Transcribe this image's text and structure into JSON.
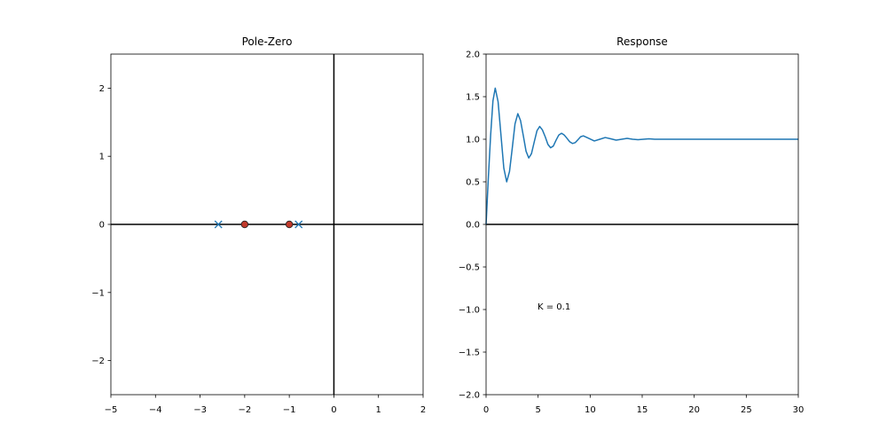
{
  "chart_data": [
    {
      "type": "scatter",
      "title": "Pole-Zero",
      "xlim": [
        -5,
        2
      ],
      "ylim": [
        -2.5,
        2.5
      ],
      "xticks": [
        {
          "value": -5,
          "label": "−5"
        },
        {
          "value": -4,
          "label": "−4"
        },
        {
          "value": -3,
          "label": "−3"
        },
        {
          "value": -2,
          "label": "−2"
        },
        {
          "value": -1,
          "label": "−1"
        },
        0,
        1,
        2
      ],
      "yticks": [
        {
          "value": -2,
          "label": "−2"
        },
        {
          "value": -1,
          "label": "−1"
        },
        0,
        1,
        2
      ],
      "hline": 0,
      "vline": 0,
      "series": [
        {
          "marker": "x",
          "color": "#1f77b4",
          "x": [
            -2.59,
            -0.79
          ],
          "values": [
            0,
            0
          ]
        },
        {
          "marker": "o",
          "color": "#c0392b",
          "x": [
            -2,
            -1
          ],
          "values": [
            0,
            0
          ]
        }
      ]
    },
    {
      "type": "line",
      "title": "Response",
      "annotation": "K = 0.1",
      "xlim": [
        0,
        30
      ],
      "ylim": [
        -2,
        2
      ],
      "xticks": [
        0,
        5,
        10,
        15,
        20,
        25,
        30
      ],
      "yticks": [
        {
          "value": -2,
          "label": "−2.0"
        },
        {
          "value": -1.5,
          "label": "−1.5"
        },
        {
          "value": -1,
          "label": "−1.0"
        },
        {
          "value": -0.5,
          "label": "−0.5"
        },
        {
          "value": 0,
          "label": "0.0"
        },
        0.5,
        {
          "value": 1,
          "label": "1.0"
        },
        1.5,
        {
          "value": 2,
          "label": "2.0"
        }
      ],
      "hline": 0,
      "color": "#1f77b4",
      "x": [
        0,
        0.22,
        0.44,
        0.66,
        0.88,
        1.155,
        1.43,
        1.705,
        1.98,
        2.25,
        2.52,
        2.78,
        3.05,
        3.31,
        3.58,
        3.84,
        4.1,
        4.36,
        4.63,
        4.89,
        5.15,
        5.41,
        5.68,
        5.94,
        6.2,
        6.46,
        6.73,
        6.99,
        7.25,
        7.51,
        7.78,
        8.04,
        8.3,
        8.56,
        8.83,
        9.09,
        9.35,
        9.88,
        10.4,
        10.93,
        11.45,
        11.98,
        12.5,
        13.03,
        13.55,
        14.08,
        14.6,
        15.13,
        15.65,
        16.2,
        18,
        30
      ],
      "values": [
        0,
        0.55,
        1.05,
        1.45,
        1.6,
        1.44,
        1.05,
        0.66,
        0.5,
        0.62,
        0.9,
        1.18,
        1.3,
        1.22,
        1.04,
        0.86,
        0.78,
        0.83,
        0.97,
        1.1,
        1.15,
        1.11,
        1.03,
        0.94,
        0.9,
        0.92,
        0.99,
        1.05,
        1.07,
        1.05,
        1.01,
        0.97,
        0.95,
        0.96,
        0.995,
        1.03,
        1.04,
        1.01,
        0.98,
        1.0,
        1.02,
        1.005,
        0.99,
        1.0,
        1.01,
        1.0,
        0.995,
        1.0,
        1.005,
        1.0,
        1.0,
        1.0
      ]
    }
  ]
}
